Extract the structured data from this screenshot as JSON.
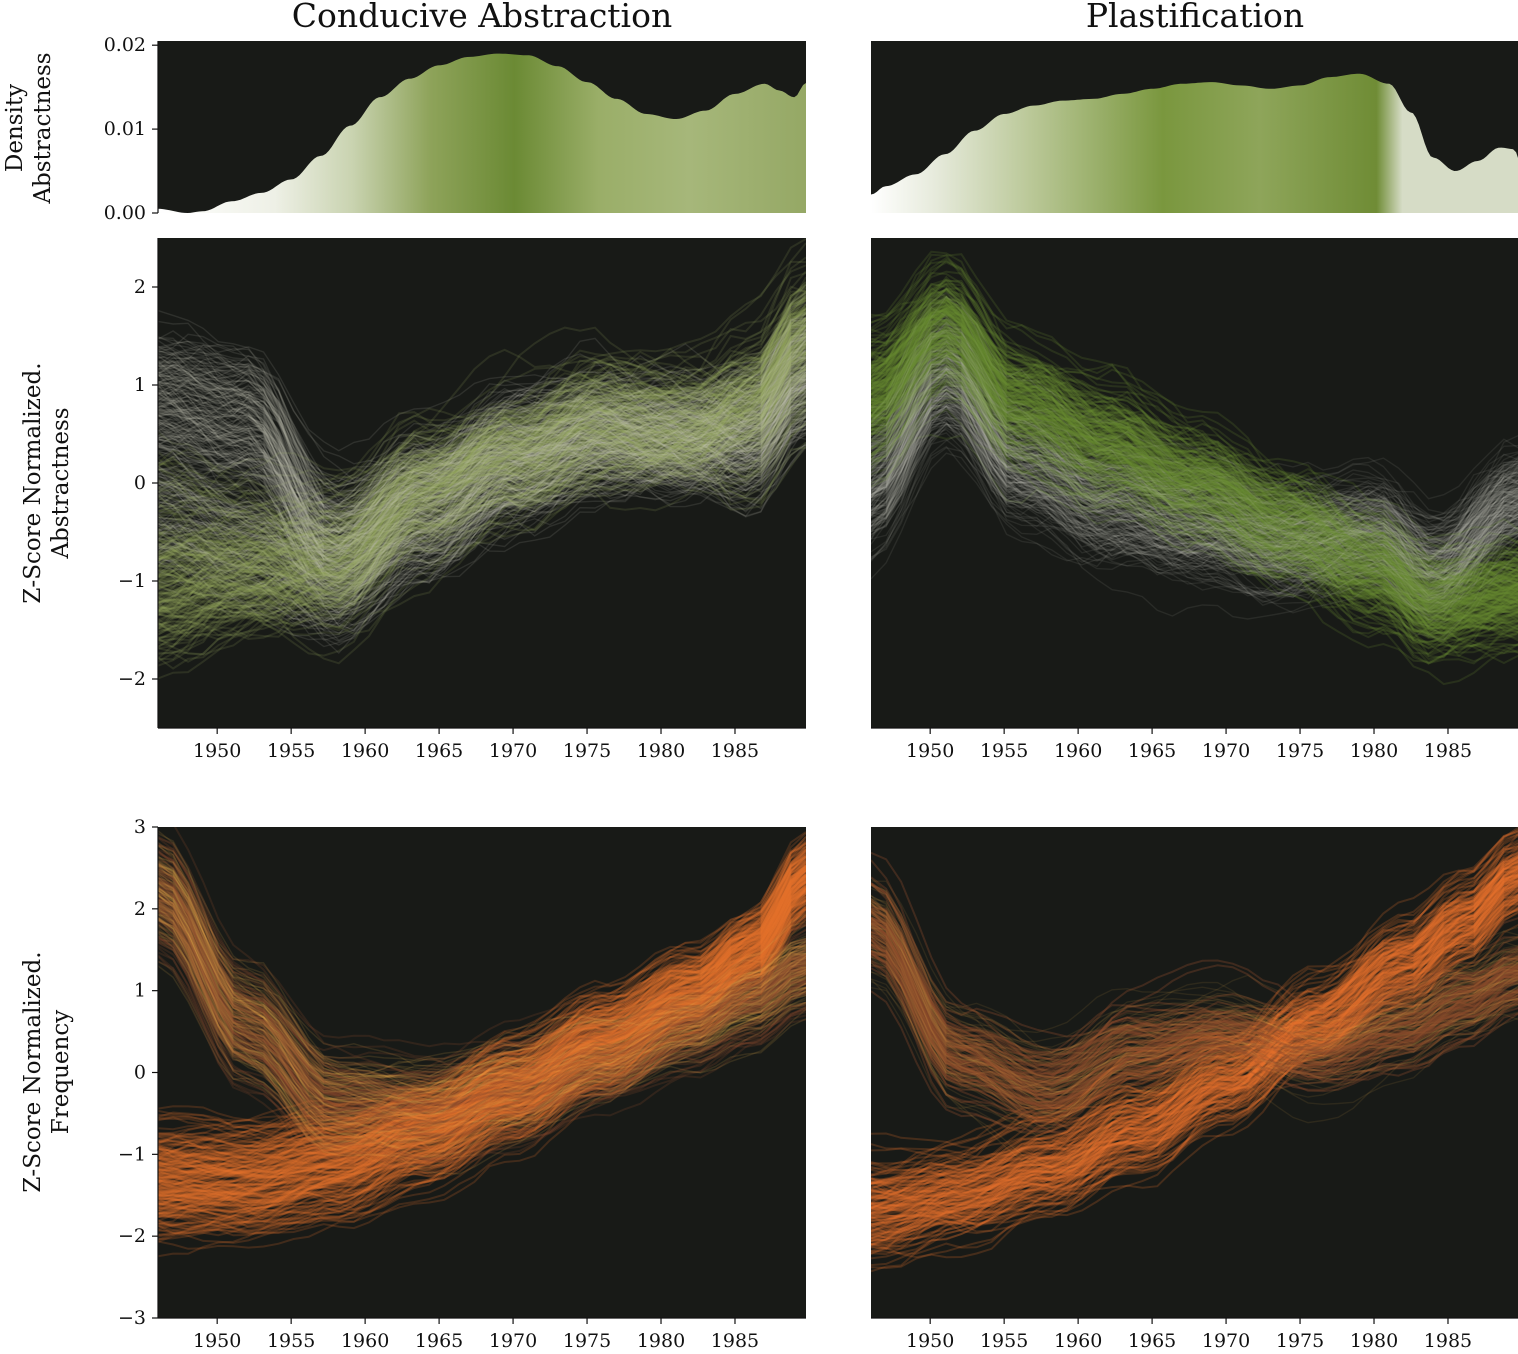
{
  "figure": {
    "col_titles": [
      "Conducive Abstraction",
      "Plastification"
    ],
    "ylabels": {
      "density": [
        "Density",
        "Abstractness"
      ],
      "abstractness": [
        "Z-Score Normalized.",
        "Abstractness"
      ],
      "frequency": [
        "Z-Score Normalized.",
        "Frequency"
      ]
    },
    "colors": {
      "panel_bg": "#181a17",
      "green_dark": "#6b8a34",
      "green_mid": "#94a85c",
      "green_light": "#d9dfc9",
      "grey_line": "#c8c8bc",
      "orange": "#e8742e",
      "orange_light": "#e8b050",
      "brown": "#8a4a2c"
    }
  },
  "chart_data": [
    {
      "type": "area",
      "panel": "density-conducive-abstraction",
      "ylabel": "Density Abstractness",
      "ylim": [
        0,
        0.0205
      ],
      "xlim": [
        1946,
        1989.8
      ],
      "yticks": [
        "0.00",
        "0.01",
        "0.02"
      ],
      "ytick_values": [
        0.0,
        0.01,
        0.02
      ],
      "x": [
        1946,
        1948,
        1949,
        1951,
        1953,
        1955,
        1957,
        1959,
        1961,
        1963,
        1965,
        1967,
        1969,
        1971,
        1973,
        1975,
        1977,
        1979,
        1981,
        1983,
        1985,
        1987,
        1988,
        1989,
        1989.8
      ],
      "y": [
        0.0005,
        0.0,
        0.0002,
        0.0014,
        0.0024,
        0.004,
        0.0068,
        0.0104,
        0.0138,
        0.016,
        0.0176,
        0.0186,
        0.019,
        0.0188,
        0.0175,
        0.0156,
        0.0136,
        0.0118,
        0.0112,
        0.0122,
        0.0142,
        0.0154,
        0.0146,
        0.0138,
        0.0155
      ]
    },
    {
      "type": "area",
      "panel": "density-plastification",
      "ylim": [
        0,
        0.0205
      ],
      "xlim": [
        1946,
        1989.8
      ],
      "x": [
        1946,
        1947,
        1949,
        1951,
        1953,
        1955,
        1957,
        1959,
        1961,
        1963,
        1965,
        1967,
        1969,
        1971,
        1973,
        1975,
        1977,
        1979,
        1981,
        1982.5,
        1984,
        1985.5,
        1987,
        1988.5,
        1989.5,
        1989.8
      ],
      "y": [
        0.0022,
        0.0032,
        0.0046,
        0.007,
        0.0098,
        0.0118,
        0.0128,
        0.0134,
        0.0136,
        0.0142,
        0.0148,
        0.0154,
        0.0156,
        0.0152,
        0.0148,
        0.0152,
        0.0162,
        0.0166,
        0.0154,
        0.012,
        0.0066,
        0.005,
        0.0062,
        0.0078,
        0.0076,
        0.0062
      ]
    },
    {
      "type": "line",
      "panel": "abstractness-conducive-abstraction",
      "ylabel": "Z-Score Normalized. Abstractness",
      "ylim": [
        -2.5,
        2.5
      ],
      "xlim": [
        1946,
        1989.8
      ],
      "yticks": [
        "−2",
        "−1",
        "0",
        "1",
        "2"
      ],
      "ytick_values": [
        -2,
        -1,
        0,
        1,
        2
      ],
      "xticks": [
        "1950",
        "1955",
        "1960",
        "1965",
        "1970",
        "1975",
        "1980",
        "1985"
      ],
      "xtick_values": [
        1950,
        1955,
        1960,
        1965,
        1970,
        1975,
        1980,
        1985
      ],
      "series": [
        {
          "x": [
            1946,
            1952,
            1958,
            1964,
            1970,
            1976,
            1982,
            1986,
            1989.8
          ],
          "y": [
            0.9,
            0.7,
            -0.6,
            -0.1,
            0.4,
            0.6,
            0.5,
            0.7,
            1.3
          ]
        },
        {
          "x": [
            1946,
            1952,
            1958,
            1964,
            1970,
            1976,
            1982,
            1986,
            1989.8
          ],
          "y": [
            -1.1,
            -0.9,
            -0.7,
            0.0,
            0.3,
            0.7,
            0.6,
            0.9,
            1.6
          ]
        },
        {
          "x": [
            1946,
            1952,
            1958,
            1964,
            1970,
            1976,
            1982,
            1986,
            1989.8
          ],
          "y": [
            -0.3,
            -0.6,
            -1.0,
            -0.4,
            0.1,
            0.4,
            0.5,
            0.3,
            0.9
          ]
        }
      ]
    },
    {
      "type": "line",
      "panel": "abstractness-plastification",
      "ylim": [
        -2.5,
        2.5
      ],
      "xlim": [
        1946,
        1989.8
      ],
      "xticks": [
        "1950",
        "1955",
        "1960",
        "1965",
        "1970",
        "1975",
        "1980",
        "1985"
      ],
      "xtick_values": [
        1950,
        1955,
        1960,
        1965,
        1970,
        1975,
        1980,
        1985
      ],
      "series": [
        {
          "x": [
            1946,
            1951,
            1956,
            1962,
            1968,
            1974,
            1980,
            1984,
            1989.8
          ],
          "y": [
            0.9,
            1.6,
            0.8,
            0.4,
            0.0,
            -0.4,
            -0.8,
            -1.2,
            -1.1
          ]
        },
        {
          "x": [
            1946,
            1951,
            1956,
            1962,
            1968,
            1974,
            1980,
            1984,
            1989.8
          ],
          "y": [
            0.0,
            1.1,
            0.2,
            -0.2,
            -0.4,
            -0.6,
            -0.5,
            -0.9,
            -0.2
          ]
        }
      ]
    },
    {
      "type": "line",
      "panel": "frequency-conducive-abstraction",
      "ylabel": "Z-Score Normalized. Frequency",
      "ylim": [
        -3,
        3
      ],
      "xlim": [
        1946,
        1989.8
      ],
      "yticks": [
        "−3",
        "−2",
        "−1",
        "0",
        "1",
        "2",
        "3"
      ],
      "ytick_values": [
        -3,
        -2,
        -1,
        0,
        1,
        2,
        3
      ],
      "xticks": [
        "1950",
        "1955",
        "1960",
        "1965",
        "1970",
        "1975",
        "1980",
        "1985"
      ],
      "xtick_values": [
        1950,
        1955,
        1960,
        1965,
        1970,
        1975,
        1980,
        1985
      ],
      "series": [
        {
          "x": [
            1946,
            1952,
            1958,
            1964,
            1970,
            1976,
            1982,
            1986,
            1989.8
          ],
          "y": [
            -1.3,
            -1.3,
            -1.1,
            -0.7,
            -0.2,
            0.4,
            1.0,
            1.5,
            2.4
          ]
        },
        {
          "x": [
            1946,
            1952,
            1958,
            1964,
            1970,
            1976,
            1982,
            1986,
            1989.8
          ],
          "y": [
            2.2,
            0.6,
            -0.4,
            -0.5,
            -0.2,
            0.2,
            0.6,
            0.9,
            1.3
          ]
        }
      ]
    },
    {
      "type": "line",
      "panel": "frequency-plastification",
      "ylim": [
        -3,
        3
      ],
      "xlim": [
        1946,
        1989.8
      ],
      "xticks": [
        "1950",
        "1955",
        "1960",
        "1965",
        "1970",
        "1975",
        "1980",
        "1985"
      ],
      "xtick_values": [
        1950,
        1955,
        1960,
        1965,
        1970,
        1975,
        1980,
        1985
      ],
      "series": [
        {
          "x": [
            1946,
            1952,
            1958,
            1964,
            1970,
            1976,
            1982,
            1986,
            1989.8
          ],
          "y": [
            -1.7,
            -1.5,
            -1.2,
            -0.7,
            -0.1,
            0.6,
            1.3,
            1.8,
            2.4
          ]
        },
        {
          "x": [
            1946,
            1952,
            1958,
            1964,
            1970,
            1976,
            1982,
            1986,
            1989.8
          ],
          "y": [
            1.8,
            0.2,
            -0.2,
            0.3,
            0.5,
            0.3,
            0.6,
            0.9,
            1.2
          ]
        }
      ]
    }
  ]
}
